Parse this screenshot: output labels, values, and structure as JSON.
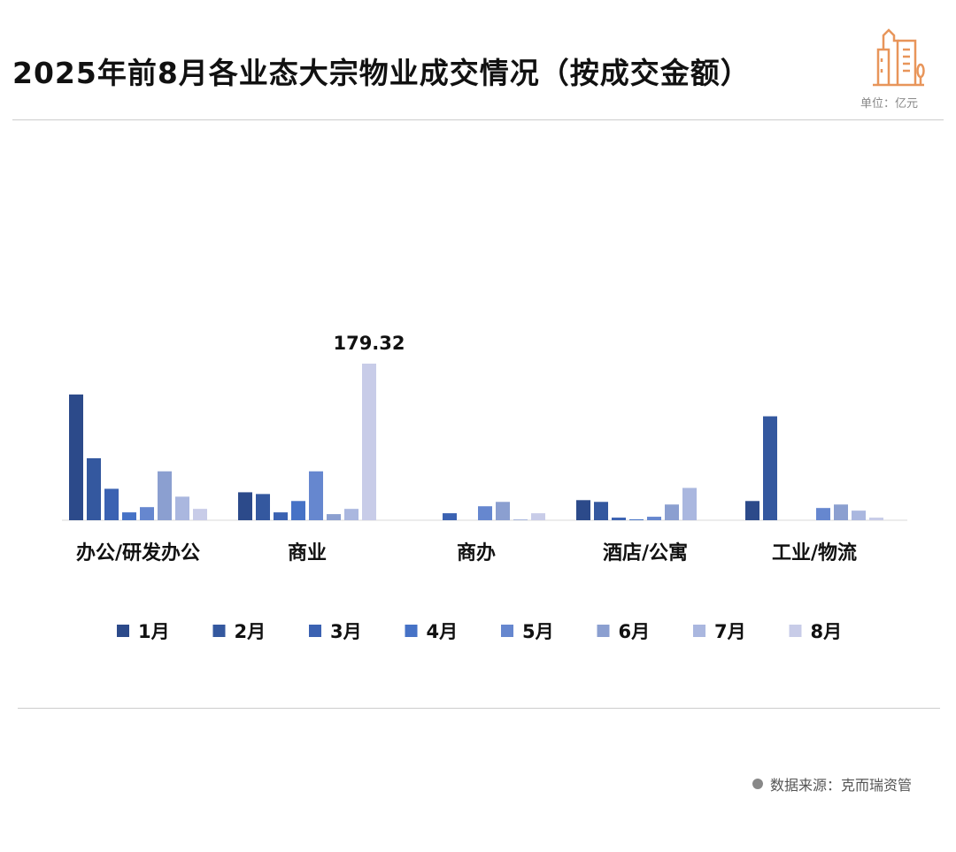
{
  "header": {
    "title": "2025年前8月各业态大宗物业成交情况（按成交金额）",
    "unit": "单位：亿元",
    "icon": "buildings-icon"
  },
  "footer": {
    "source": "数据来源：克而瑞资管"
  },
  "chart_data": {
    "type": "bar",
    "title": "2025年前8月各业态大宗物业成交情况（按成交金额）",
    "ylabel": "亿元",
    "ylim": [
      0,
      180
    ],
    "grid": false,
    "legend_position": "bottom",
    "categories": [
      "办公/研发办公",
      "商业",
      "商办",
      "酒店/公寓",
      "工业/物流"
    ],
    "series": [
      {
        "name": "1月",
        "color": "#2c4a8a",
        "values": [
          144,
          32,
          0,
          23,
          22
        ]
      },
      {
        "name": "2月",
        "color": "#34589f",
        "values": [
          71,
          30,
          0,
          21,
          119
        ]
      },
      {
        "name": "3月",
        "color": "#3b62b2",
        "values": [
          36,
          9,
          8,
          3,
          0
        ]
      },
      {
        "name": "4月",
        "color": "#4672c6",
        "values": [
          9,
          22,
          0,
          1,
          0
        ]
      },
      {
        "name": "5月",
        "color": "#6687cf",
        "values": [
          15,
          56,
          16,
          4,
          14
        ]
      },
      {
        "name": "6月",
        "color": "#8b9fd0",
        "values": [
          56,
          7,
          21,
          18,
          18
        ]
      },
      {
        "name": "7月",
        "color": "#aab7df",
        "values": [
          27,
          13,
          1,
          37,
          11
        ]
      },
      {
        "name": "8月",
        "color": "#c8cce8",
        "values": [
          13,
          179.32,
          8,
          0,
          3
        ]
      }
    ],
    "annotations": [
      {
        "category": "商业",
        "series": "8月",
        "label": "179.32"
      }
    ]
  }
}
